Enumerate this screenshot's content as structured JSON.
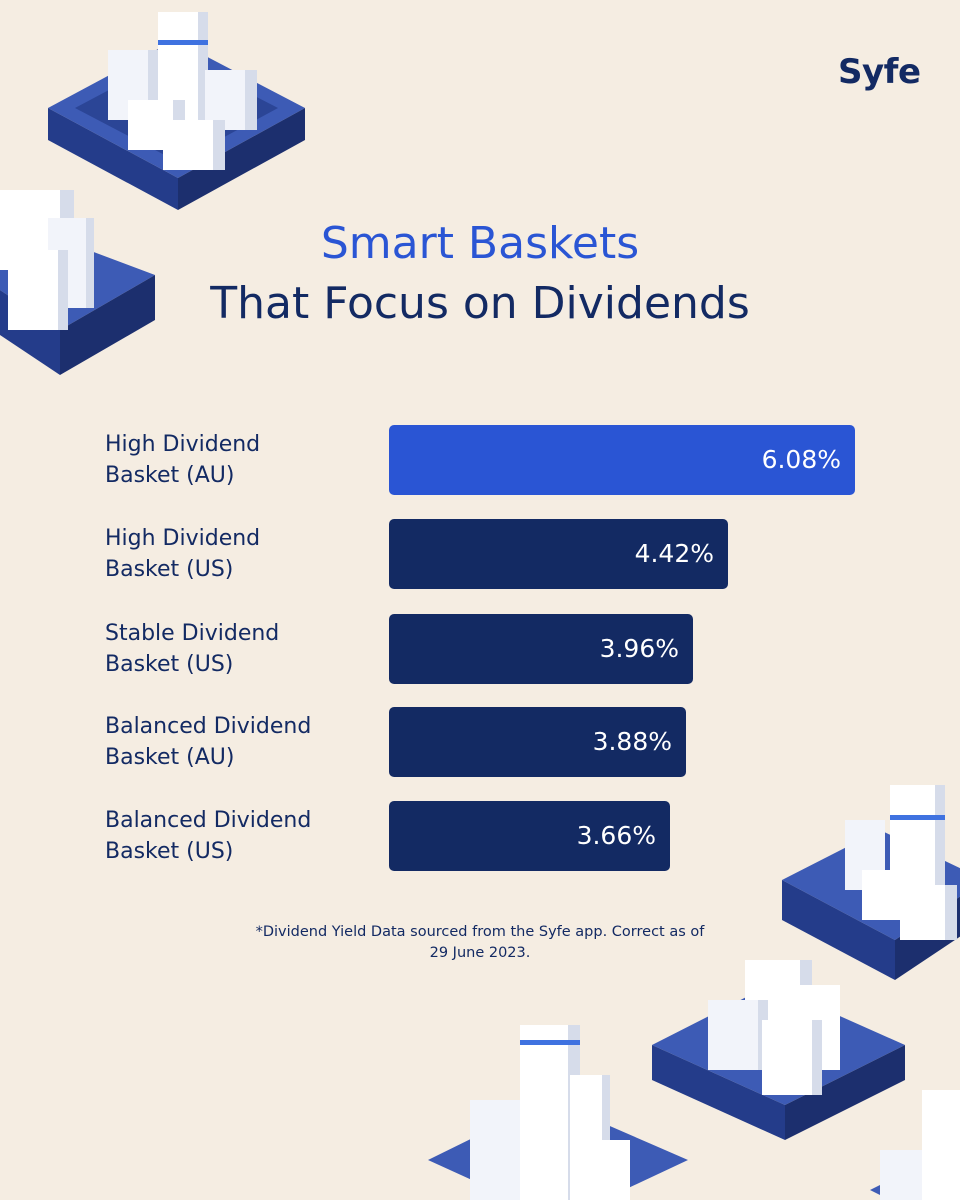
{
  "brand": {
    "logo_text": "Syfe"
  },
  "header": {
    "title_line1": "Smart Baskets",
    "title_line2": "That Focus on Dividends"
  },
  "colors": {
    "background": "#f5ede2",
    "highlight_bar": "#2a55d4",
    "bar": "#132a63",
    "text_dark": "#132a63",
    "title_accent": "#2a55d4"
  },
  "chart_data": {
    "type": "bar",
    "orientation": "horizontal",
    "categories_line1": [
      "High Dividend",
      "High Dividend",
      "Stable Dividend",
      "Balanced Dividend",
      "Balanced Dividend"
    ],
    "categories_line2": [
      "Basket (AU)",
      "Basket (US)",
      "Basket (US)",
      "Basket (AU)",
      "Basket (US)"
    ],
    "values": [
      6.08,
      4.42,
      3.96,
      3.88,
      3.66
    ],
    "value_labels": [
      "6.08%",
      "4.42%",
      "3.96%",
      "3.88%",
      "3.66%"
    ],
    "highlight_index": 0,
    "xlim": [
      0,
      6.08
    ],
    "grid": false,
    "legend": "none"
  },
  "footnote": {
    "line1": "*Dividend Yield Data sourced from the Syfe app. Correct as of",
    "line2": "29 June 2023."
  }
}
